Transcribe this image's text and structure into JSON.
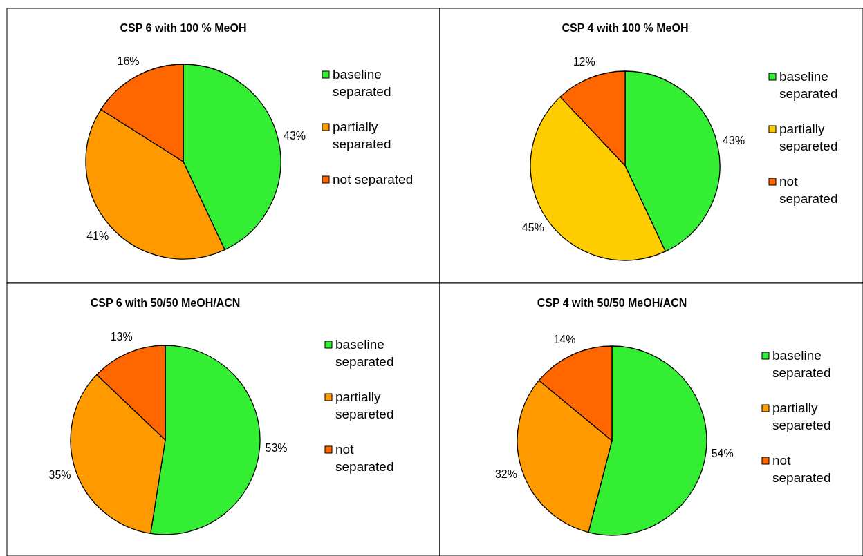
{
  "chart_data": [
    {
      "type": "pie",
      "title": "CSP 6 with 100 % MeOH",
      "categories": [
        "baseline separated",
        "partially separated",
        "not separated"
      ],
      "values": [
        43,
        41,
        16
      ],
      "colors": [
        "#33ee33",
        "#ff9900",
        "#ff6600"
      ],
      "value_labels": [
        "43%",
        "41%",
        "16%"
      ],
      "legend": "right"
    },
    {
      "type": "pie",
      "title": "CSP 4 with 100 % MeOH",
      "categories": [
        "baseline separated",
        "partially separeted",
        "not separated"
      ],
      "values": [
        43,
        45,
        12
      ],
      "colors": [
        "#33ee33",
        "#ffcc00",
        "#ff6600"
      ],
      "value_labels": [
        "43%",
        "45%",
        "12%"
      ],
      "legend": "right"
    },
    {
      "type": "pie",
      "title": "CSP 6 with 50/50 MeOH/ACN",
      "categories": [
        "baseline separated",
        "partially separeted",
        "not separated"
      ],
      "values": [
        53,
        35,
        13
      ],
      "colors": [
        "#33ee33",
        "#ff9900",
        "#ff6600"
      ],
      "value_labels": [
        "53%",
        "35%",
        "13%"
      ],
      "legend": "right"
    },
    {
      "type": "pie",
      "title": "CSP 4 with 50/50 MeOH/ACN",
      "categories": [
        "baseline separated",
        "partially separeted",
        "not separated"
      ],
      "values": [
        54,
        32,
        14
      ],
      "colors": [
        "#33ee33",
        "#ff9900",
        "#ff6600"
      ],
      "value_labels": [
        "54%",
        "32%",
        "14%"
      ],
      "legend": "right"
    }
  ]
}
